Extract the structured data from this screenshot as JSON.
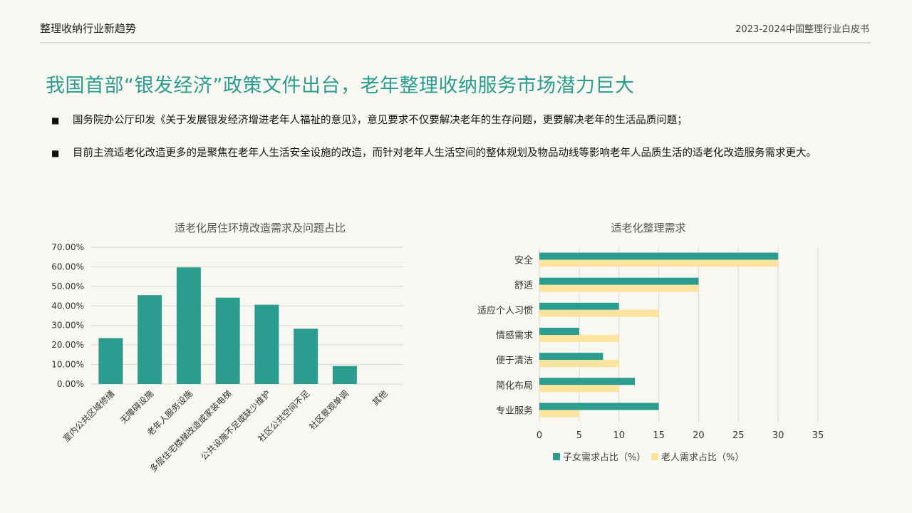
{
  "header": {
    "left_title": "整理收纳行业新趋势",
    "right_title": "2023-2024中国整理行业白皮书"
  },
  "page_title": "我国首部“银发经济”政策文件出台，老年整理收纳服务市场潜力巨大",
  "bullets": [
    {
      "mark": "■",
      "text": "国务院办公厅印发《关于发展银发经济增进老年人福祉的意见》，意见要求不仅要解决老年的生存问题，更要解决老年的生活品质问题；"
    },
    {
      "mark": "■",
      "text": "目前主流适老化改造更多的是聚焦在老年人生活安全设施的改造，而针对老年人生活空间的整体规划及物品动线等影响老年人品质生活的适老化改造服务需求更大。"
    }
  ],
  "colors": {
    "accent": "#2a9d8f",
    "bar_green": "#2a9d8f",
    "series_child": "#2a9d8f",
    "series_elder": "#fde49e",
    "grid": "#d9d9d5"
  },
  "chart_data": [
    {
      "type": "bar",
      "title": "适老化居住环境改造需求及问题占比",
      "categories": [
        "室内公共区域修缮",
        "无障碍设施",
        "老年人服务设施",
        "多层住宅楼梯改造或家装电梯",
        "公共设施不足或缺少维护",
        "社区公共空间不足",
        "社区景观单调",
        "其他"
      ],
      "values": [
        23.5,
        45.5,
        59.7,
        44.2,
        40.6,
        28.3,
        9.2,
        0
      ],
      "ylim": [
        0,
        70
      ],
      "yticks": [
        "0.00%",
        "10.00%",
        "20.00%",
        "30.00%",
        "40.00%",
        "50.00%",
        "60.00%",
        "70.00%"
      ],
      "grid": true
    },
    {
      "type": "bar",
      "orientation": "horizontal",
      "title": "适老化整理需求",
      "categories": [
        "安全",
        "舒适",
        "适应个人习惯",
        "情感需求",
        "便于清洁",
        "简化布局",
        "专业服务"
      ],
      "series": [
        {
          "name": "子女需求占比（%）",
          "values": [
            30,
            20,
            10,
            5,
            8,
            12,
            15
          ]
        },
        {
          "name": "老人需求占比（%）",
          "values": [
            30,
            20,
            15,
            10,
            10,
            10,
            5
          ]
        }
      ],
      "xlim": [
        0,
        35
      ],
      "xticks": [
        "0",
        "5",
        "10",
        "15",
        "20",
        "25",
        "30",
        "35"
      ],
      "legend_position": "bottom",
      "grid": true
    }
  ]
}
